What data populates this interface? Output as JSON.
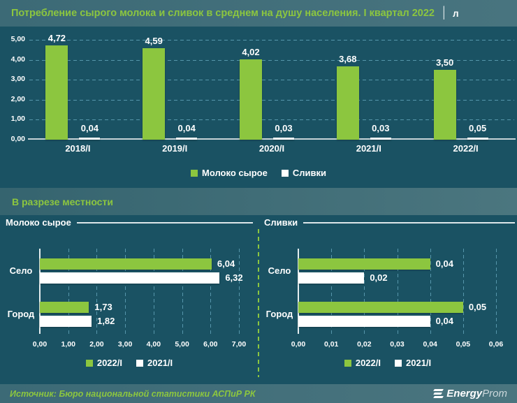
{
  "header": {
    "title": "Потребление сырого молока и сливок в среднем на душу населения. I квартал 2022",
    "separator": "│",
    "unit": "л"
  },
  "section": {
    "title": "В разрезе местности"
  },
  "footer": {
    "source": "Источник: Бюро национальной статистики АСПиР РК",
    "logo_bold": "Energy",
    "logo_light": "Prom"
  },
  "colors": {
    "background": "#1a5263",
    "band": "#3e6d79",
    "accent_green": "#8cc63f",
    "series_white": "#ffffff",
    "gridline": "#7ec4db",
    "text": "#ffffff"
  },
  "chart_data": [
    {
      "type": "bar",
      "title": "Потребление сырого молока и сливок в среднем на душу населения. I квартал 2022, л",
      "categories": [
        "2018/I",
        "2019/I",
        "2020/I",
        "2021/I",
        "2022/I"
      ],
      "series": [
        {
          "name": "Молоко сырое",
          "color": "#8cc63f",
          "values": [
            4.72,
            4.59,
            4.02,
            3.68,
            3.5
          ],
          "labels": [
            "4,72",
            "4,59",
            "4,02",
            "3,68",
            "3,50"
          ]
        },
        {
          "name": "Сливки",
          "color": "#ffffff",
          "values": [
            0.04,
            0.04,
            0.03,
            0.03,
            0.05
          ],
          "labels": [
            "0,04",
            "0,04",
            "0,03",
            "0,03",
            "0,05"
          ]
        }
      ],
      "xlabel": "",
      "ylabel": "",
      "ylim": [
        0,
        5
      ],
      "yticks": [
        "0,00",
        "1,00",
        "2,00",
        "3,00",
        "4,00",
        "5,00"
      ],
      "grid": true,
      "legend_position": "bottom"
    },
    {
      "type": "bar-horizontal",
      "title": "Молоко сырое",
      "categories": [
        "Село",
        "Город"
      ],
      "series": [
        {
          "name": "2022/I",
          "color": "#8cc63f",
          "values": [
            6.04,
            1.73
          ],
          "labels": [
            "6,04",
            "1,73"
          ]
        },
        {
          "name": "2021/I",
          "color": "#ffffff",
          "values": [
            6.32,
            1.82
          ],
          "labels": [
            "6,32",
            "1,82"
          ]
        }
      ],
      "xlabel": "",
      "ylabel": "",
      "xlim": [
        0,
        7
      ],
      "xticks": [
        "0,00",
        "1,00",
        "2,00",
        "3,00",
        "4,00",
        "5,00",
        "6,00",
        "7,00"
      ],
      "grid": true,
      "legend_position": "bottom"
    },
    {
      "type": "bar-horizontal",
      "title": "Сливки",
      "categories": [
        "Село",
        "Город"
      ],
      "series": [
        {
          "name": "2022/I",
          "color": "#8cc63f",
          "values": [
            0.04,
            0.05
          ],
          "labels": [
            "0,04",
            "0,05"
          ]
        },
        {
          "name": "2021/I",
          "color": "#ffffff",
          "values": [
            0.02,
            0.04
          ],
          "labels": [
            "0,02",
            "0,04"
          ]
        }
      ],
      "xlabel": "",
      "ylabel": "",
      "xlim": [
        0,
        0.06
      ],
      "xticks": [
        "0,00",
        "0,01",
        "0,02",
        "0,03",
        "0,04",
        "0,05",
        "0,06"
      ],
      "grid": true,
      "legend_position": "bottom"
    }
  ]
}
